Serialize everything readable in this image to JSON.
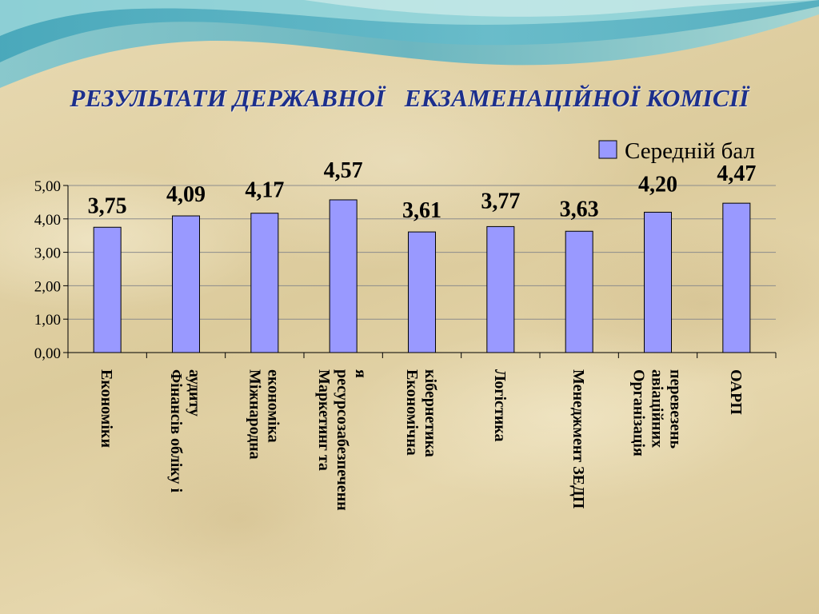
{
  "title": "РЕЗУЛЬТАТИ ДЕРЖАВНОЇ   ЕКЗАМЕНАЦІЙНОЇ КОМІСІЇ",
  "colors": {
    "bar": "#9999ff",
    "bar_stroke": "#000000",
    "title": "#1c2f8c"
  },
  "chart_data": {
    "type": "bar",
    "categories": [
      [
        "Економіки"
      ],
      [
        "Фінансів обліку і",
        "аудиту"
      ],
      [
        "Міжнародна",
        "економіка"
      ],
      [
        "Маркетинг та",
        "ресурсозабезпеченн",
        "я"
      ],
      [
        "Економічна",
        "кібернетика"
      ],
      [
        "Логістика"
      ],
      [
        "Менеджмент ЗЕДП"
      ],
      [
        "Організація",
        "авіаційних",
        "перевезень"
      ],
      [
        "ОАРП"
      ]
    ],
    "series": [
      {
        "name": "Середній бал",
        "values": [
          3.75,
          4.09,
          4.17,
          4.57,
          3.61,
          3.77,
          3.63,
          4.2,
          4.47
        ],
        "labels": [
          "3,75",
          "4,09",
          "4,17",
          "4,57",
          "3,61",
          "3,77",
          "3,63",
          "4,20",
          "4,47"
        ]
      }
    ],
    "yticks": [
      "0,00",
      "1,00",
      "2,00",
      "3,00",
      "4,00",
      "5,00"
    ],
    "ylim": [
      0,
      5
    ],
    "grid": true,
    "legend": "top-right"
  }
}
